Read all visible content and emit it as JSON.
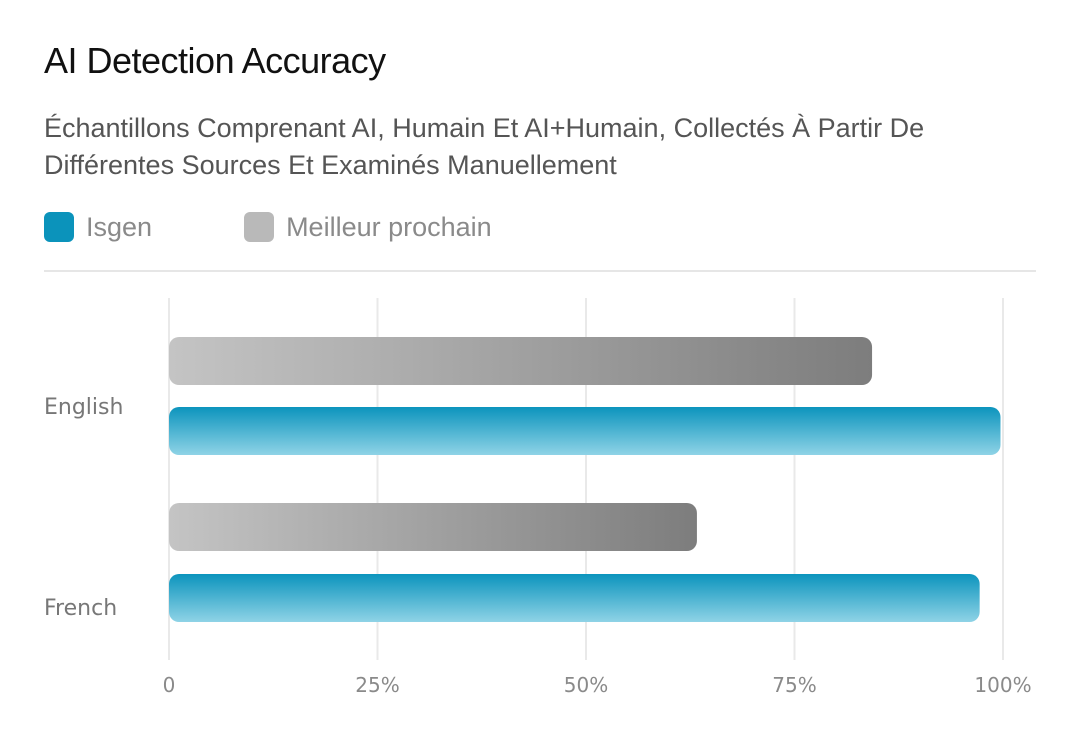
{
  "colors": {
    "isgen": "#1a9bc0",
    "meilleur": "#a6a6a6",
    "grid": "#e6e6e6"
  },
  "chart_data": {
    "type": "bar",
    "orientation": "horizontal",
    "title": "AI Detection Accuracy",
    "subtitle": "Échantillons Comprenant AI, Humain Et AI+Humain, Collectés À Partir De Différentes Sources Et Examinés Manuellement",
    "categories": [
      "English",
      "French"
    ],
    "series": [
      {
        "name": "Isgen",
        "values": [
          99.7,
          97.2
        ],
        "color": "#1a9bc0"
      },
      {
        "name": "Meilleur prochain",
        "values": [
          84.3,
          63.3
        ],
        "color": "#a6a6a6"
      }
    ],
    "xlim": [
      0,
      100
    ],
    "x_ticks": [
      "0",
      "25%",
      "50%",
      "75%",
      "100%"
    ],
    "x_tick_values": [
      0,
      25,
      50,
      75,
      100
    ],
    "grid": true,
    "legend": "top-left"
  }
}
